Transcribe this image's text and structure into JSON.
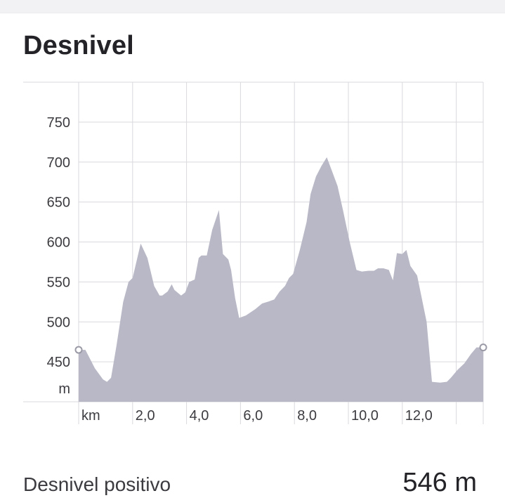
{
  "title": "Desnivel",
  "stats": {
    "label": "Desnivel positivo",
    "value": "546 m"
  },
  "colors": {
    "area_fill": "#b8b8c6",
    "grid": "#d9d9de",
    "text": "#3b3b40"
  },
  "chart_data": {
    "type": "area",
    "title": "Desnivel",
    "xlabel": "km",
    "ylabel": "m",
    "x_tick_labels": [
      "2,0",
      "4,0",
      "6,0",
      "8,0",
      "10,0",
      "12,0"
    ],
    "x_ticks": [
      2,
      4,
      6,
      8,
      10,
      12
    ],
    "y_tick_labels": [
      "450",
      "500",
      "550",
      "600",
      "650",
      "700",
      "750"
    ],
    "y_ticks": [
      450,
      500,
      550,
      600,
      650,
      700,
      750
    ],
    "xlim": [
      0,
      15
    ],
    "ylim": [
      400,
      800
    ],
    "grid": true,
    "series": [
      {
        "x": [
          0.0,
          0.25,
          0.4,
          0.6,
          0.9,
          1.05,
          1.2,
          1.4,
          1.65,
          1.85,
          2.0,
          2.3,
          2.55,
          2.8,
          3.0,
          3.1,
          3.3,
          3.45,
          3.55,
          3.8,
          3.95,
          4.1,
          4.3,
          4.45,
          4.55,
          4.75,
          4.95,
          5.2,
          5.35,
          5.55,
          5.65,
          5.8,
          5.95,
          6.2,
          6.55,
          6.8,
          7.0,
          7.25,
          7.45,
          7.65,
          7.8,
          7.95,
          8.2,
          8.45,
          8.6,
          8.8,
          9.0,
          9.2,
          9.4,
          9.6,
          9.8,
          10.05,
          10.3,
          10.5,
          10.75,
          10.95,
          11.1,
          11.3,
          11.5,
          11.65,
          11.8,
          12.0,
          12.15,
          12.3,
          12.55,
          12.9,
          13.1,
          13.4,
          13.65,
          13.8,
          14.05,
          14.3,
          14.55,
          14.75,
          15.0
        ],
        "y": [
          465,
          465,
          455,
          442,
          428,
          425,
          430,
          470,
          525,
          550,
          555,
          598,
          580,
          545,
          533,
          533,
          538,
          547,
          540,
          533,
          537,
          550,
          553,
          580,
          583,
          583,
          615,
          640,
          585,
          578,
          565,
          530,
          505,
          508,
          516,
          523,
          525,
          528,
          538,
          545,
          555,
          560,
          590,
          625,
          660,
          682,
          695,
          706,
          688,
          670,
          640,
          600,
          565,
          563,
          564,
          564,
          567,
          567,
          565,
          552,
          586,
          585,
          590,
          570,
          558,
          500,
          425,
          424,
          425,
          430,
          440,
          448,
          460,
          468,
          468
        ]
      }
    ]
  }
}
